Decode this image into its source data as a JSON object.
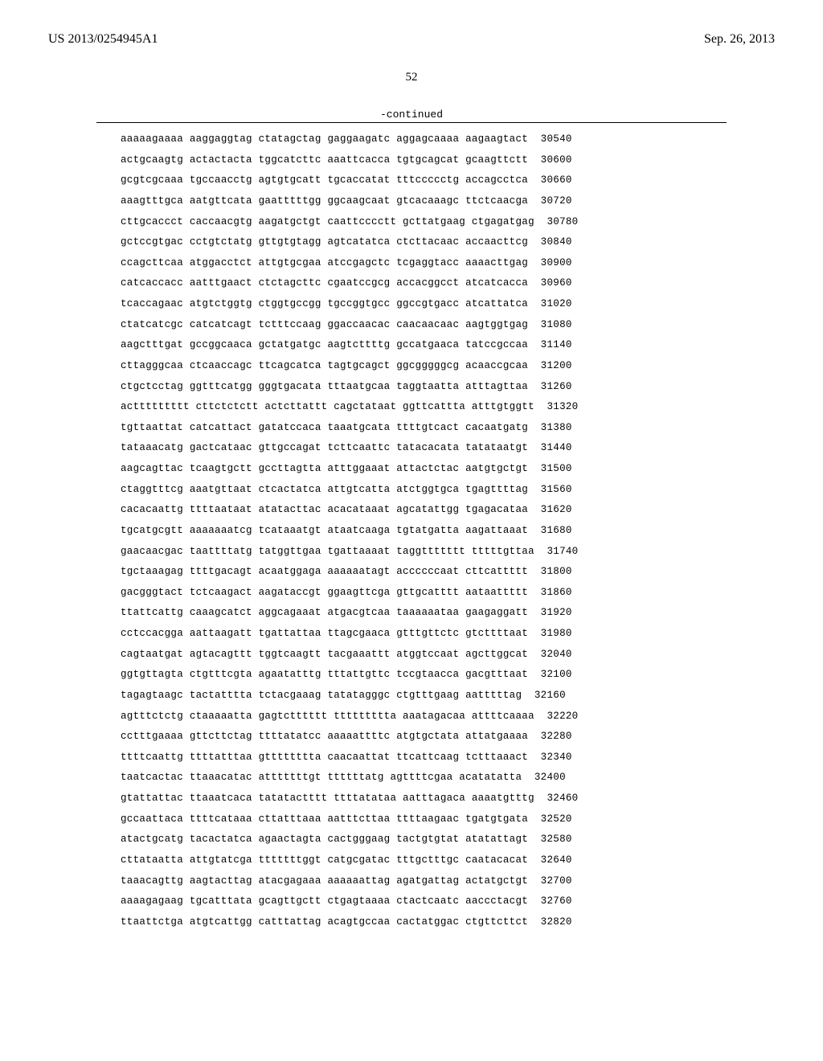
{
  "header": {
    "left": "US 2013/0254945A1",
    "right": "Sep. 26, 2013"
  },
  "page_number": "52",
  "continued": "-continued",
  "sequence": {
    "rows": [
      {
        "groups": [
          "aaaaagaaaa",
          "aaggaggtag",
          "ctatagctag",
          "gaggaagatc",
          "aggagcaaaa",
          "aagaagtact"
        ],
        "pos": "30540"
      },
      {
        "groups": [
          "actgcaagtg",
          "actactacta",
          "tggcatcttc",
          "aaattcacca",
          "tgtgcagcat",
          "gcaagttctt"
        ],
        "pos": "30600"
      },
      {
        "groups": [
          "gcgtcgcaaa",
          "tgccaacctg",
          "agtgtgcatt",
          "tgcaccatat",
          "tttccccctg",
          "accagcctca"
        ],
        "pos": "30660"
      },
      {
        "groups": [
          "aaagtttgca",
          "aatgttcata",
          "gaatttttgg",
          "ggcaagcaat",
          "gtcacaaagc",
          "ttctcaacga"
        ],
        "pos": "30720"
      },
      {
        "groups": [
          "cttgcaccct",
          "caccaacgtg",
          "aagatgctgt",
          "caattcccctt",
          "gcttatgaag",
          "ctgagatgag"
        ],
        "pos": "30780"
      },
      {
        "groups": [
          "gctccgtgac",
          "cctgtctatg",
          "gttgtgtagg",
          "agtcatatca",
          "ctcttacaac",
          "accaacttcg"
        ],
        "pos": "30840"
      },
      {
        "groups": [
          "ccagcttcaa",
          "atggacctct",
          "attgtgcgaa",
          "atccgagctc",
          "tcgaggtacc",
          "aaaacttgag"
        ],
        "pos": "30900"
      },
      {
        "groups": [
          "catcaccacc",
          "aatttgaact",
          "ctctagcttc",
          "cgaatccgcg",
          "accacggcct",
          "atcatcacca"
        ],
        "pos": "30960"
      },
      {
        "groups": [
          "tcaccagaac",
          "atgtctggtg",
          "ctggtgccgg",
          "tgccggtgcc",
          "ggccgtgacc",
          "atcattatca"
        ],
        "pos": "31020"
      },
      {
        "groups": [
          "ctatcatcgc",
          "catcatcagt",
          "tctttccaag",
          "ggaccaacac",
          "caacaacaac",
          "aagtggtgag"
        ],
        "pos": "31080"
      },
      {
        "groups": [
          "aagctttgat",
          "gccggcaaca",
          "gctatgatgc",
          "aagtcttttg",
          "gccatgaaca",
          "tatccgccaa"
        ],
        "pos": "31140"
      },
      {
        "groups": [
          "cttagggcaa",
          "ctcaaccagc",
          "ttcagcatca",
          "tagtgcagct",
          "ggcgggggcg",
          "acaaccgcaa"
        ],
        "pos": "31200"
      },
      {
        "groups": [
          "ctgctcctag",
          "ggtttcatgg",
          "gggtgacata",
          "tttaatgcaa",
          "taggtaatta",
          "atttagttaa"
        ],
        "pos": "31260"
      },
      {
        "groups": [
          "acttttttttt",
          "cttctctctt",
          "actcttattt",
          "cagctataat",
          "ggttcattta",
          "atttgtggtt"
        ],
        "pos": "31320"
      },
      {
        "groups": [
          "tgttaattat",
          "catcattact",
          "gatatccaca",
          "taaatgcata",
          "ttttgtcact",
          "cacaatgatg"
        ],
        "pos": "31380"
      },
      {
        "groups": [
          "tataaacatg",
          "gactcataac",
          "gttgccagat",
          "tcttcaattc",
          "tatacacata",
          "tatataatgt"
        ],
        "pos": "31440"
      },
      {
        "groups": [
          "aagcagttac",
          "tcaagtgctt",
          "gccttagtta",
          "atttggaaat",
          "attactctac",
          "aatgtgctgt"
        ],
        "pos": "31500"
      },
      {
        "groups": [
          "ctaggtttcg",
          "aaatgttaat",
          "ctcactatca",
          "attgtcatta",
          "atctggtgca",
          "tgagttttag"
        ],
        "pos": "31560"
      },
      {
        "groups": [
          "cacacaattg",
          "ttttaataat",
          "atatacttac",
          "acacataaat",
          "agcatattgg",
          "tgagacataa"
        ],
        "pos": "31620"
      },
      {
        "groups": [
          "tgcatgcgtt",
          "aaaaaaatcg",
          "tcataaatgt",
          "ataatcaaga",
          "tgtatgatta",
          "aagattaaat"
        ],
        "pos": "31680"
      },
      {
        "groups": [
          "gaacaacgac",
          "taattttatg",
          "tatggttgaa",
          "tgattaaaat",
          "taggttttttt",
          "tttttgttaa"
        ],
        "pos": "31740"
      },
      {
        "groups": [
          "tgctaaagag",
          "ttttgacagt",
          "acaatggaga",
          "aaaaaatagt",
          "accccccaat",
          "cttcattttt"
        ],
        "pos": "31800"
      },
      {
        "groups": [
          "gacgggtact",
          "tctcaagact",
          "aagataccgt",
          "ggaagttcga",
          "gttgcatttt",
          "aataattttt"
        ],
        "pos": "31860"
      },
      {
        "groups": [
          "ttattcattg",
          "caaagcatct",
          "aggcagaaat",
          "atgacgtcaa",
          "taaaaaataa",
          "gaagaggatt"
        ],
        "pos": "31920"
      },
      {
        "groups": [
          "cctccacgga",
          "aattaagatt",
          "tgattattaa",
          "ttagcgaaca",
          "gtttgttctc",
          "gtcttttaat"
        ],
        "pos": "31980"
      },
      {
        "groups": [
          "cagtaatgat",
          "agtacagttt",
          "tggtcaagtt",
          "tacgaaattt",
          "atggtccaat",
          "agcttggcat"
        ],
        "pos": "32040"
      },
      {
        "groups": [
          "ggtgttagta",
          "ctgtttcgta",
          "agaatatttg",
          "tttattgttc",
          "tccgtaacca",
          "gacgtttaat"
        ],
        "pos": "32100"
      },
      {
        "groups": [
          "tagagtaagc",
          "tactatttta",
          "tctacgaaag",
          "tatatagggc",
          "ctgtttgaag",
          "aatttttag"
        ],
        "pos": "32160"
      },
      {
        "groups": [
          "agtttctctg",
          "ctaaaaatta",
          "gagtctttttt",
          "ttttttttta",
          "aaatagacaa",
          "attttcaaaa"
        ],
        "pos": "32220"
      },
      {
        "groups": [
          "cctttgaaaa",
          "gttcttctag",
          "ttttatatcc",
          "aaaaattttc",
          "atgtgctata",
          "attatgaaaa"
        ],
        "pos": "32280"
      },
      {
        "groups": [
          "ttttcaattg",
          "ttttatttaa",
          "gtttttttta",
          "caacaattat",
          "ttcattcaag",
          "tctttaaact"
        ],
        "pos": "32340"
      },
      {
        "groups": [
          "taatcactac",
          "ttaaacatac",
          "atttttttgt",
          "ttttttatg",
          "agttttcgaa",
          "acatatatta"
        ],
        "pos": "32400"
      },
      {
        "groups": [
          "gtattattac",
          "ttaaatcaca",
          "tatatactttt",
          "ttttatataa",
          "aatttagaca",
          "aaaatgtttg"
        ],
        "pos": "32460"
      },
      {
        "groups": [
          "gccaattaca",
          "ttttcataaa",
          "cttatttaaa",
          "aatttcttaa",
          "ttttaagaac",
          "tgatgtgata"
        ],
        "pos": "32520"
      },
      {
        "groups": [
          "atactgcatg",
          "tacactatca",
          "agaactagta",
          "cactgggaag",
          "tactgtgtat",
          "atatattagt"
        ],
        "pos": "32580"
      },
      {
        "groups": [
          "cttataatta",
          "attgtatcga",
          "tttttttggt",
          "catgcgatac",
          "tttgctttgc",
          "caatacacat"
        ],
        "pos": "32640"
      },
      {
        "groups": [
          "taaacagttg",
          "aagtacttag",
          "atacgagaaa",
          "aaaaaattag",
          "agatgattag",
          "actatgctgt"
        ],
        "pos": "32700"
      },
      {
        "groups": [
          "aaaagagaag",
          "tgcatttata",
          "gcagttgctt",
          "ctgagtaaaa",
          "ctactcaatc",
          "aaccctacgt"
        ],
        "pos": "32760"
      },
      {
        "groups": [
          "ttaattctga",
          "atgtcattgg",
          "catttattag",
          "acagtgccaa",
          "cactatggac",
          "ctgttcttct"
        ],
        "pos": "32820"
      }
    ]
  }
}
